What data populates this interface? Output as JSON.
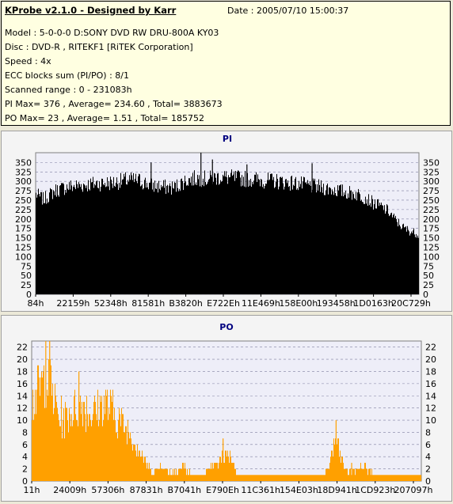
{
  "info": {
    "title": "KProbe v2.1.0 - Designed by Karr",
    "date": "Date : 2005/07/10 15:00:37",
    "lines": [
      "Model : 5-0-0-0 D:SONY    DVD RW DRU-800A  KY03",
      "Disc : DVD-R , RITEKF1 [RiTEK Corporation]",
      "Speed : 4x",
      "ECC blocks sum (PI/PO) : 8/1",
      "Scanned range : 0 - 231083h",
      "PI Max= 376 , Average= 234.60 , Total= 3883673",
      "PO Max= 23 , Average= 1.51 , Total= 185752"
    ]
  },
  "colors": {
    "pi_bar": "#000000",
    "po_bar": "#ffa000",
    "title_text": "#000080",
    "plot_bg": "#eeeef8"
  },
  "chart_data": [
    {
      "type": "bar",
      "title": "PI",
      "ylim": [
        0,
        376
      ],
      "y_ticks": [
        0,
        25,
        50,
        75,
        100,
        125,
        150,
        175,
        200,
        225,
        250,
        275,
        300,
        325,
        350
      ],
      "x_tick_labels": [
        "84h",
        "22159h",
        "52348h",
        "81581h",
        "B3820h",
        "E722Eh",
        "11E469h",
        "158E00h",
        "193458h",
        "1D0163h",
        "20C729h"
      ],
      "grid": true,
      "envelope": {
        "x": [
          0,
          0.02,
          0.05,
          0.08,
          0.12,
          0.16,
          0.2,
          0.24,
          0.27,
          0.3,
          0.33,
          0.36,
          0.39,
          0.42,
          0.45,
          0.48,
          0.52,
          0.56,
          0.6,
          0.64,
          0.68,
          0.72,
          0.75,
          0.78,
          0.81,
          0.84,
          0.86,
          0.88,
          0.9,
          0.92,
          0.94,
          0.96,
          0.98,
          1.0
        ],
        "y": [
          280,
          265,
          290,
          300,
          305,
          310,
          312,
          320,
          318,
          305,
          300,
          298,
          318,
          325,
          322,
          328,
          325,
          322,
          318,
          315,
          310,
          302,
          298,
          292,
          285,
          280,
          270,
          255,
          245,
          232,
          205,
          185,
          175,
          168
        ]
      },
      "spikes": [
        {
          "x": 0.3,
          "y": 350
        },
        {
          "x": 0.43,
          "y": 376
        },
        {
          "x": 0.46,
          "y": 358
        },
        {
          "x": 0.72,
          "y": 348
        },
        {
          "x": 0.55,
          "y": 345
        }
      ]
    },
    {
      "type": "bar",
      "title": "PO",
      "ylim": [
        0,
        23
      ],
      "y_ticks": [
        0,
        2,
        4,
        6,
        8,
        10,
        12,
        14,
        16,
        18,
        20,
        22
      ],
      "x_tick_labels": [
        "11h",
        "24009h",
        "57306h",
        "87831h",
        "B7041h",
        "E790Eh",
        "11C361h",
        "154E03h",
        "18D941h",
        "1CD923h",
        "207097h"
      ],
      "grid": true,
      "envelope": {
        "x": [
          0,
          0.02,
          0.035,
          0.05,
          0.06,
          0.07,
          0.09,
          0.11,
          0.13,
          0.15,
          0.17,
          0.19,
          0.21,
          0.23,
          0.25,
          0.27,
          0.29,
          0.31,
          0.33,
          0.35,
          0.37,
          0.39,
          0.41,
          0.43,
          0.45,
          0.47,
          0.49,
          0.5,
          0.51,
          0.52,
          0.53,
          0.55,
          0.6,
          0.65,
          0.7,
          0.73,
          0.75,
          0.76,
          0.77,
          0.78,
          0.79,
          0.8,
          0.81,
          0.83,
          0.85,
          0.87,
          0.88,
          0.9,
          0.92,
          0.95,
          0.98,
          1.0
        ],
        "y": [
          16,
          19,
          21,
          19,
          16,
          13,
          13,
          15,
          16,
          14,
          15,
          16,
          14,
          12,
          10,
          7,
          4,
          2,
          3,
          2,
          2,
          3,
          1,
          1,
          2,
          3,
          5,
          6,
          5,
          3,
          1,
          1,
          1,
          1,
          1,
          1,
          1,
          3,
          6,
          9,
          6,
          3,
          2,
          2,
          3,
          2,
          1,
          1,
          1,
          1,
          1,
          1
        ]
      },
      "spikes": [
        {
          "x": 0.035,
          "y": 23
        },
        {
          "x": 0.045,
          "y": 23
        },
        {
          "x": 0.12,
          "y": 18
        },
        {
          "x": 0.49,
          "y": 7
        },
        {
          "x": 0.78,
          "y": 10
        },
        {
          "x": 0.82,
          "y": 3
        }
      ]
    }
  ]
}
